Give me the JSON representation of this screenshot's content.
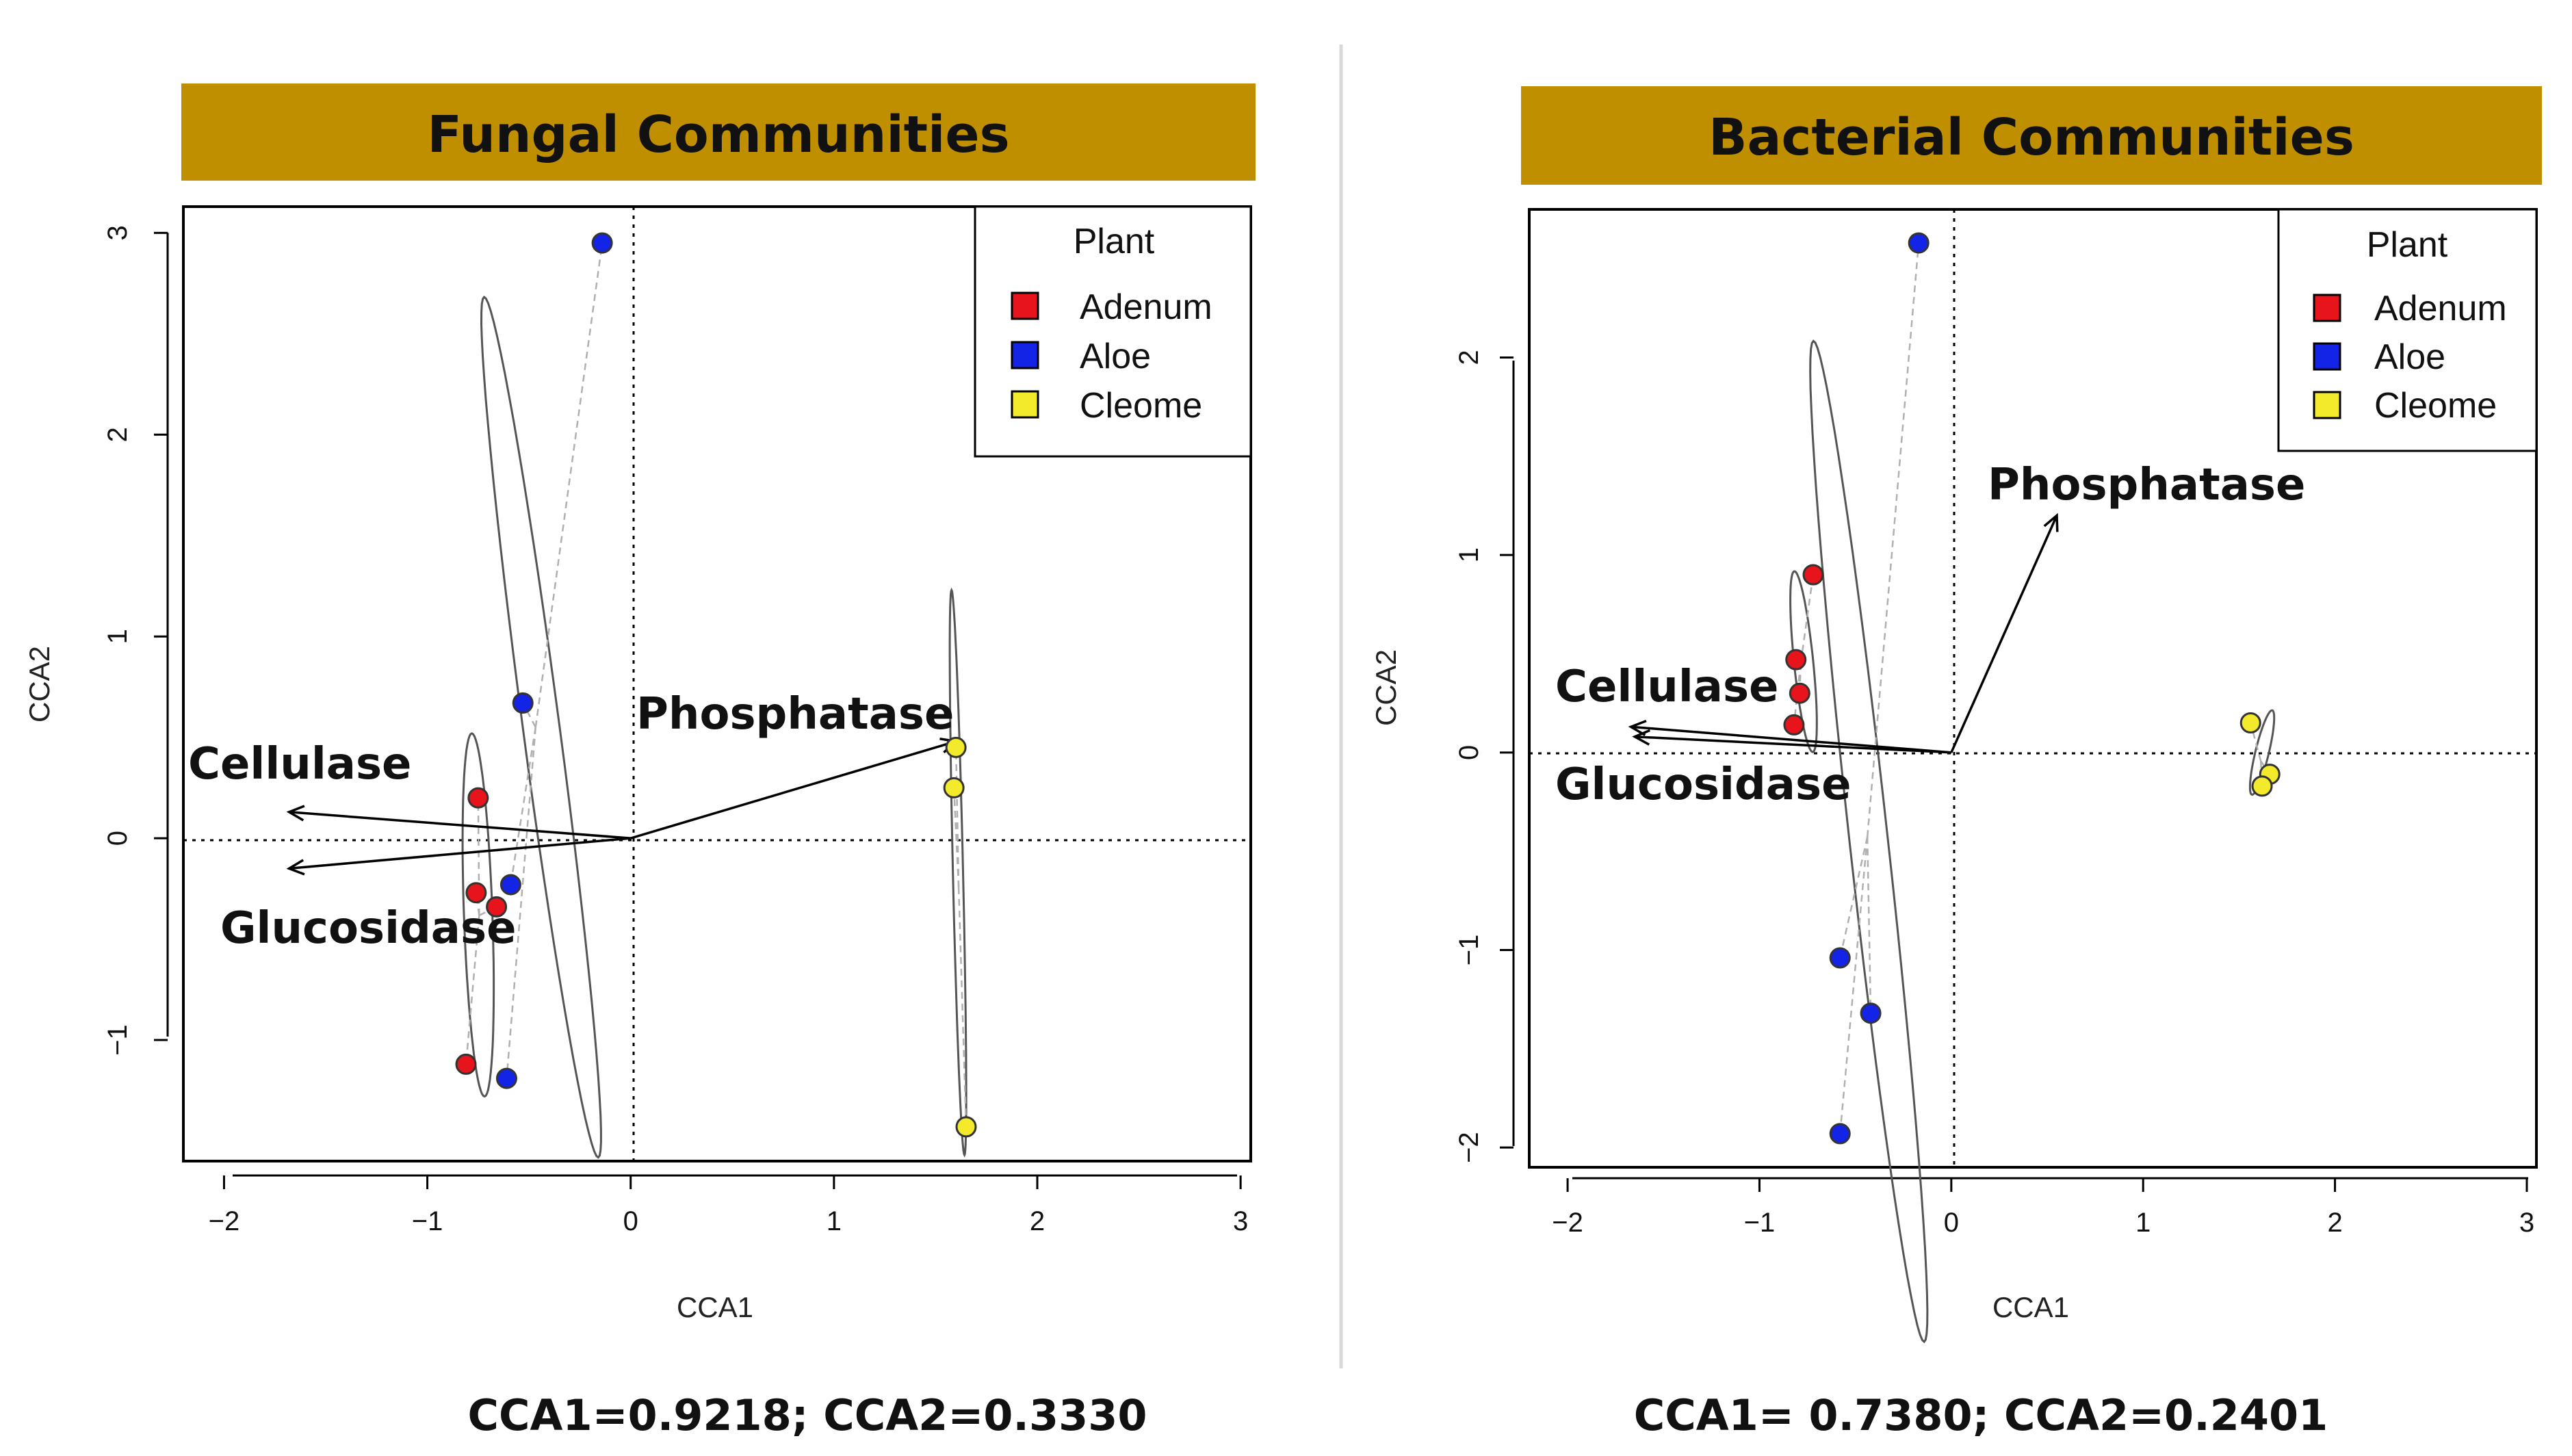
{
  "chart_data": [
    {
      "type": "scatter",
      "title": "Fungal Communities",
      "title_bg": "#BF8F00",
      "xlabel": "CCA1",
      "ylabel": "CCA2",
      "xlim": [
        -2.2,
        3.05
      ],
      "ylim": [
        -1.6,
        3.13
      ],
      "xticks": [
        -2,
        -1,
        0,
        1,
        2,
        3
      ],
      "yticks": [
        -1,
        0,
        1,
        2,
        3
      ],
      "legend": {
        "title": "Plant",
        "placement": "top-right",
        "entries": [
          {
            "label": "Adenum",
            "color": "#E8141C"
          },
          {
            "label": "Aloe",
            "color": "#1424E6"
          },
          {
            "label": "Cleome",
            "color": "#F2EA2A"
          }
        ]
      },
      "series": [
        {
          "name": "Adenum",
          "color": "#E8141C",
          "points": [
            [
              -0.75,
              0.2
            ],
            [
              -0.76,
              -0.27
            ],
            [
              -0.66,
              -0.34
            ],
            [
              -0.81,
              -1.12
            ]
          ]
        },
        {
          "name": "Aloe",
          "color": "#1424E6",
          "points": [
            [
              -0.14,
              2.95
            ],
            [
              -0.53,
              0.67
            ],
            [
              -0.59,
              -0.23
            ],
            [
              -0.61,
              -1.19
            ]
          ]
        },
        {
          "name": "Cleome",
          "color": "#F2EA2A",
          "points": [
            [
              1.6,
              0.45
            ],
            [
              1.59,
              0.25
            ],
            [
              1.65,
              -1.43
            ]
          ]
        }
      ],
      "ellipses": [
        {
          "group": "Adenum",
          "center": [
            -0.75,
            -0.38
          ],
          "semi_axes": [
            0.07,
            0.9
          ],
          "angle_deg": 2
        },
        {
          "group": "Aloe",
          "center": [
            -0.44,
            0.55
          ],
          "semi_axes": [
            0.09,
            2.15
          ],
          "angle_deg": 7.5
        },
        {
          "group": "Cleome",
          "center": [
            1.61,
            -0.17
          ],
          "semi_axes": [
            0.025,
            1.4
          ],
          "angle_deg": 1.3
        }
      ],
      "arrows": [
        {
          "label": "Cellulase",
          "end": [
            -1.68,
            0.13
          ]
        },
        {
          "label": "Glucosidase",
          "end": [
            -1.68,
            -0.15
          ]
        },
        {
          "label": "Phosphatase",
          "end": [
            1.6,
            0.48
          ]
        }
      ],
      "annotation": "CCA1=0.9218; CCA2=0.3330"
    },
    {
      "type": "scatter",
      "title": "Bacterial Communities",
      "title_bg": "#BF8F00",
      "xlabel": "CCA1",
      "ylabel": "CCA2",
      "xlim": [
        -2.2,
        3.05
      ],
      "ylim": [
        -2.1,
        2.75
      ],
      "xticks": [
        -2,
        -1,
        0,
        1,
        2,
        3
      ],
      "yticks": [
        -2,
        -1,
        0,
        1,
        2
      ],
      "legend": {
        "title": "Plant",
        "placement": "top-right",
        "entries": [
          {
            "label": "Adenum",
            "color": "#E8141C"
          },
          {
            "label": "Aloe",
            "color": "#1424E6"
          },
          {
            "label": "Cleome",
            "color": "#F2EA2A"
          }
        ]
      },
      "series": [
        {
          "name": "Adenum",
          "color": "#E8141C",
          "points": [
            [
              -0.72,
              0.9
            ],
            [
              -0.81,
              0.47
            ],
            [
              -0.79,
              0.3
            ],
            [
              -0.82,
              0.14
            ]
          ]
        },
        {
          "name": "Aloe",
          "color": "#1424E6",
          "points": [
            [
              -0.17,
              2.58
            ],
            [
              -0.58,
              -1.04
            ],
            [
              -0.42,
              -1.32
            ],
            [
              -0.58,
              -1.93
            ]
          ]
        },
        {
          "name": "Cleome",
          "color": "#F2EA2A",
          "points": [
            [
              1.56,
              0.15
            ],
            [
              1.66,
              -0.11
            ],
            [
              1.62,
              -0.17
            ]
          ]
        }
      ],
      "ellipses": [
        {
          "group": "Adenum",
          "center": [
            -0.77,
            0.46
          ],
          "semi_axes": [
            0.05,
            0.46
          ],
          "angle_deg": 6
        },
        {
          "group": "Aloe",
          "center": [
            -0.43,
            -0.45
          ],
          "semi_axes": [
            0.1,
            2.55
          ],
          "angle_deg": 6.5
        },
        {
          "group": "Cleome",
          "center": [
            1.62,
            0.0
          ],
          "semi_axes": [
            0.035,
            0.22
          ],
          "angle_deg": -14
        }
      ],
      "arrows": [
        {
          "label": "Phosphatase",
          "end": [
            0.55,
            1.2
          ]
        },
        {
          "label": "Cellulase",
          "end": [
            -1.67,
            0.13
          ]
        },
        {
          "label": "Glucosidase",
          "end": [
            -1.65,
            0.08
          ]
        }
      ],
      "annotation": "CCA1= 0.7380; CCA2=0.2401"
    }
  ]
}
